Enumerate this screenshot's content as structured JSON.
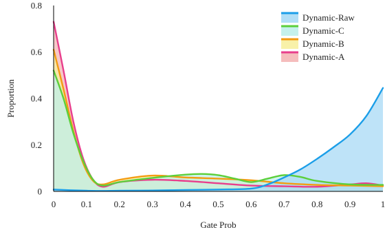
{
  "chart_data": {
    "type": "area",
    "xlabel": "Gate Prob",
    "ylabel": "Proportion",
    "xlim": [
      0,
      1
    ],
    "ylim": [
      0,
      0.8
    ],
    "x_ticks": [
      0,
      0.1,
      0.2,
      0.3,
      0.4,
      0.5,
      0.6,
      0.7,
      0.8,
      0.9,
      1
    ],
    "x_tick_labels": [
      "0",
      "0.1",
      "0.2",
      "0.3",
      "0.4",
      "0.5",
      "0.6",
      "0.7",
      "0.8",
      "0.9",
      "1"
    ],
    "y_ticks": [
      0,
      0.2,
      0.4,
      0.6,
      0.8
    ],
    "y_tick_labels": [
      "0",
      "0.2",
      "0.4",
      "0.6",
      "0.8"
    ],
    "grid": false,
    "legend_position": "top-right",
    "series": [
      {
        "name": "Dynamic-A",
        "line_color": "#e83e8c",
        "fill_color": "#f4b6b6",
        "points": [
          [
            0,
            0.73
          ],
          [
            0.03,
            0.52
          ],
          [
            0.06,
            0.3
          ],
          [
            0.09,
            0.14
          ],
          [
            0.12,
            0.05
          ],
          [
            0.15,
            0.02
          ],
          [
            0.2,
            0.04
          ],
          [
            0.3,
            0.05
          ],
          [
            0.4,
            0.045
          ],
          [
            0.5,
            0.035
          ],
          [
            0.6,
            0.025
          ],
          [
            0.7,
            0.022
          ],
          [
            0.8,
            0.02
          ],
          [
            0.9,
            0.03
          ],
          [
            0.95,
            0.035
          ],
          [
            1,
            0.025
          ]
        ]
      },
      {
        "name": "Dynamic-B",
        "line_color": "#f39c12",
        "fill_color": "#f7f0a0",
        "points": [
          [
            0,
            0.61
          ],
          [
            0.03,
            0.44
          ],
          [
            0.06,
            0.26
          ],
          [
            0.09,
            0.12
          ],
          [
            0.12,
            0.045
          ],
          [
            0.15,
            0.03
          ],
          [
            0.2,
            0.05
          ],
          [
            0.3,
            0.068
          ],
          [
            0.4,
            0.06
          ],
          [
            0.5,
            0.055
          ],
          [
            0.6,
            0.048
          ],
          [
            0.7,
            0.035
          ],
          [
            0.8,
            0.028
          ],
          [
            0.9,
            0.025
          ],
          [
            1,
            0.022
          ]
        ]
      },
      {
        "name": "Dynamic-C",
        "line_color": "#5ccf3a",
        "fill_color": "#bff0ea",
        "points": [
          [
            0,
            0.52
          ],
          [
            0.03,
            0.4
          ],
          [
            0.06,
            0.25
          ],
          [
            0.09,
            0.13
          ],
          [
            0.12,
            0.05
          ],
          [
            0.15,
            0.025
          ],
          [
            0.2,
            0.04
          ],
          [
            0.3,
            0.058
          ],
          [
            0.4,
            0.072
          ],
          [
            0.45,
            0.075
          ],
          [
            0.5,
            0.07
          ],
          [
            0.55,
            0.055
          ],
          [
            0.6,
            0.04
          ],
          [
            0.65,
            0.055
          ],
          [
            0.7,
            0.07
          ],
          [
            0.75,
            0.062
          ],
          [
            0.8,
            0.045
          ],
          [
            0.9,
            0.03
          ],
          [
            1,
            0.028
          ]
        ]
      },
      {
        "name": "Dynamic-Raw",
        "line_color": "#1b9ee8",
        "fill_color": "#a8daf5",
        "points": [
          [
            0,
            0.008
          ],
          [
            0.05,
            0.005
          ],
          [
            0.1,
            0.003
          ],
          [
            0.15,
            0.002
          ],
          [
            0.2,
            0.003
          ],
          [
            0.3,
            0.004
          ],
          [
            0.4,
            0.006
          ],
          [
            0.5,
            0.008
          ],
          [
            0.6,
            0.012
          ],
          [
            0.65,
            0.03
          ],
          [
            0.7,
            0.06
          ],
          [
            0.75,
            0.095
          ],
          [
            0.8,
            0.14
          ],
          [
            0.85,
            0.19
          ],
          [
            0.9,
            0.245
          ],
          [
            0.95,
            0.325
          ],
          [
            1,
            0.445
          ]
        ]
      }
    ]
  }
}
